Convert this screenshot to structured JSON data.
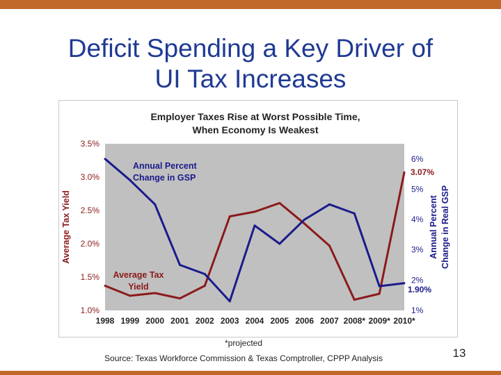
{
  "slide": {
    "title_line1": "Deficit Spending a Key Driver of",
    "title_line2": "UI Tax Increases",
    "footnote": "*projected",
    "source": "Source: Texas Workforce Commission & Texas Comptroller, CPPP Analysis",
    "page_number": "13"
  },
  "colors": {
    "bar": "#c0692a",
    "title": "#1f3a93",
    "tax_line": "#8b1a1a",
    "gsp_line": "#1a1a8c",
    "plot_bg": "#c0c0c0"
  },
  "chart_data": {
    "type": "line",
    "title_line1": "Employer Taxes Rise at Worst Possible Time,",
    "title_line2": "When Economy Is Weakest",
    "categories": [
      "1998",
      "1999",
      "2000",
      "2001",
      "2002",
      "2003",
      "2004",
      "2005",
      "2006",
      "2007",
      "2008*",
      "2009*",
      "2010*"
    ],
    "left_axis": {
      "label": "Average Tax Yield",
      "min": 1.0,
      "max": 3.5,
      "ticks": [
        "1.0%",
        "1.5%",
        "2.0%",
        "2.5%",
        "3.0%",
        "3.5%"
      ]
    },
    "right_axis": {
      "label_line1": "Annual Percent",
      "label_line2": "Change in Real GSP",
      "min": 1,
      "max": 6.5,
      "ticks": [
        "1%",
        "2%",
        "3%",
        "4%",
        "5%",
        "6%"
      ]
    },
    "series": [
      {
        "name": "Average Tax Yield",
        "label_line1": "Average Tax",
        "label_line2": "Yield",
        "axis": "left",
        "values": [
          1.37,
          1.22,
          1.26,
          1.18,
          1.37,
          2.41,
          2.48,
          2.61,
          2.3,
          1.97,
          1.16,
          1.25,
          3.07
        ]
      },
      {
        "name": "Annual Percent Change in GSP",
        "label_line1": "Annual Percent",
        "label_line2": "Change in GSP",
        "axis": "right",
        "values": [
          6.0,
          5.3,
          4.5,
          2.5,
          2.2,
          1.3,
          3.8,
          3.2,
          4.0,
          4.5,
          4.2,
          1.8,
          1.9
        ]
      }
    ],
    "end_labels": {
      "tax": "3.07%",
      "gsp": "1.90%"
    }
  }
}
